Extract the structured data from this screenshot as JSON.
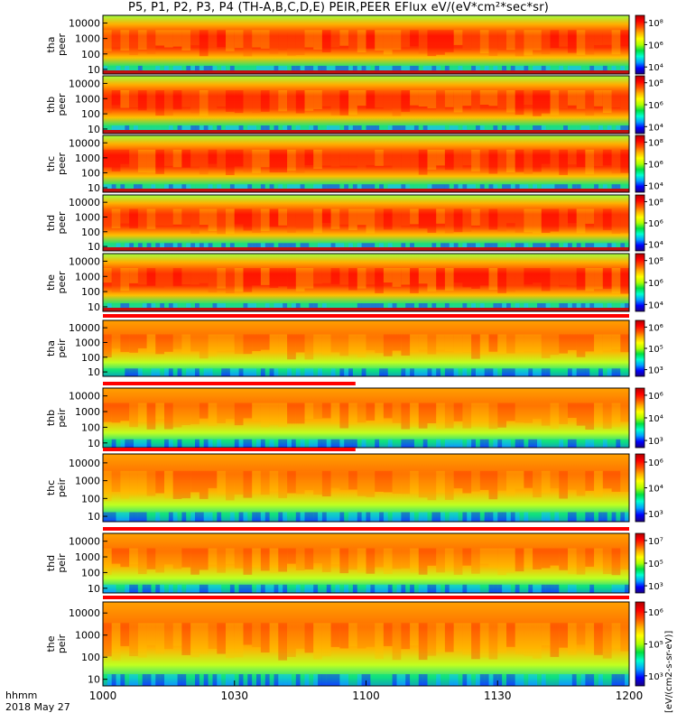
{
  "title": "P5, P1, P2, P3, P4 (TH-A,B,C,D,E) PEIR,PEER EFlux eV/(eV*cm²*sec*sr)",
  "time_label": "hhmm",
  "date_label": "2018 May 27",
  "colorbar_unit": "[eV/(cm2-s-sr-eV)]",
  "colors": {
    "spectrum": [
      "#1a0080",
      "#0000ff",
      "#00a0ff",
      "#00ffd0",
      "#00e040",
      "#b0ff00",
      "#ffff00",
      "#ffb000",
      "#ff5000",
      "#ff0000",
      "#b00000"
    ],
    "mode_bar_red": "#ff0000",
    "low_fill": "#c01010"
  },
  "chart_data": {
    "type": "heatmap",
    "x_ticks": [
      "1000",
      "1030",
      "1100",
      "1130",
      "1200"
    ],
    "y_ticks": [
      "10",
      "100",
      "1000",
      "10000"
    ],
    "y_scale": "log",
    "panels": [
      {
        "line1": "tha",
        "line2": "peer",
        "cbar_min": "10⁴",
        "cbar_mid": "10⁶",
        "cbar_max": "10⁸"
      },
      {
        "line1": "thb",
        "line2": "peer",
        "cbar_min": "10⁴",
        "cbar_mid": "10⁶",
        "cbar_max": "10⁸"
      },
      {
        "line1": "thc",
        "line2": "peer",
        "cbar_min": "10⁴",
        "cbar_mid": "10⁶",
        "cbar_max": "10⁸"
      },
      {
        "line1": "thd",
        "line2": "peer",
        "cbar_min": "10⁴",
        "cbar_mid": "10⁶",
        "cbar_max": "10⁸"
      },
      {
        "line1": "the",
        "line2": "peer",
        "cbar_min": "10⁴",
        "cbar_mid": "10⁶",
        "cbar_max": "10⁸"
      },
      {
        "line1": "tha",
        "line2": "peir",
        "cbar_min": "10³",
        "cbar_mid": "10⁵",
        "cbar_max": "10⁶"
      },
      {
        "line1": "thb",
        "line2": "peir",
        "cbar_min": "10³",
        "cbar_mid": "10⁴",
        "cbar_max": "10⁶"
      },
      {
        "line1": "thc",
        "line2": "peir",
        "cbar_min": "10³",
        "cbar_mid": "10⁴",
        "cbar_max": "10⁶"
      },
      {
        "line1": "thd",
        "line2": "peir",
        "cbar_min": "10³",
        "cbar_mid": "10⁵",
        "cbar_max": "10⁷"
      },
      {
        "line1": "the",
        "line2": "peir",
        "cbar_min": "10³",
        "cbar_mid": "10⁵",
        "cbar_max": "10⁶"
      }
    ]
  }
}
